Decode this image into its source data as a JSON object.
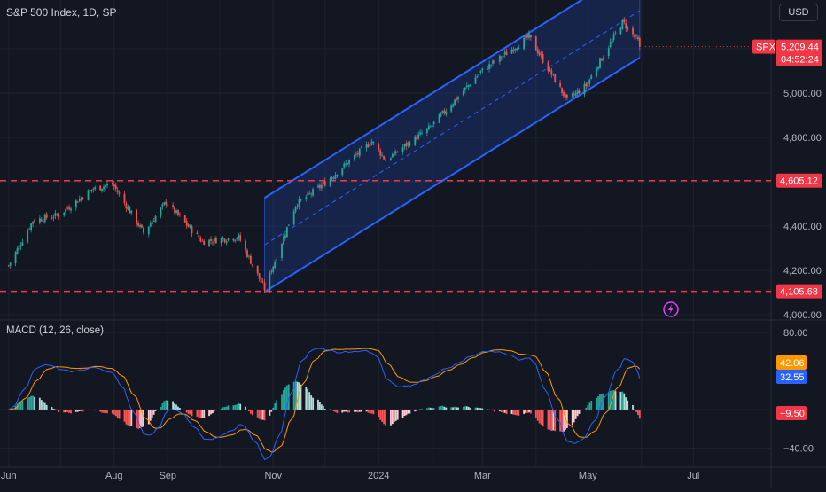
{
  "header": {
    "title": "S&P 500 Index, 1D, SP",
    "currency": "USD",
    "macd_title": "MACD (12, 26, close)"
  },
  "colors": {
    "background": "#131722",
    "up": "#26a69a",
    "down": "#ef5350",
    "channel": "#2962ff",
    "level": "#f23645",
    "macd": "#2962ff",
    "signal": "#ff9800",
    "hist_up_strong": "#26a69a",
    "hist_up_weak": "#b2dfdb",
    "hist_down_strong": "#ff5252",
    "hist_down_weak": "#ffcdd2"
  },
  "chart_data": [
    {
      "type": "candlestick",
      "title": "S&P 500 Index, 1D, SP",
      "x_tick_labels": [
        "Jun",
        "Aug",
        "Sep",
        "Nov",
        "2024",
        "Mar",
        "May",
        "Jul"
      ],
      "y_tick_labels": [
        "5,000.00",
        "4,800.00",
        "4,400.00",
        "4,200.00",
        "4,000.00"
      ],
      "ylim": [
        3980,
        5420
      ],
      "price_anchors": [
        {
          "date": "2023-06-01",
          "close": 4221
        },
        {
          "date": "2023-06-15",
          "close": 4425
        },
        {
          "date": "2023-06-30",
          "close": 4450
        },
        {
          "date": "2023-07-19",
          "close": 4565
        },
        {
          "date": "2023-07-31",
          "close": 4590
        },
        {
          "date": "2023-08-18",
          "close": 4370
        },
        {
          "date": "2023-08-31",
          "close": 4508
        },
        {
          "date": "2023-09-21",
          "close": 4330
        },
        {
          "date": "2023-10-12",
          "close": 4350
        },
        {
          "date": "2023-10-27",
          "close": 4117
        },
        {
          "date": "2023-11-14",
          "close": 4496
        },
        {
          "date": "2023-12-01",
          "close": 4595
        },
        {
          "date": "2023-12-28",
          "close": 4783
        },
        {
          "date": "2024-01-05",
          "close": 4697
        },
        {
          "date": "2024-01-31",
          "close": 4846
        },
        {
          "date": "2024-02-29",
          "close": 5096
        },
        {
          "date": "2024-03-28",
          "close": 5254
        },
        {
          "date": "2024-04-19",
          "close": 4967
        },
        {
          "date": "2024-04-30",
          "close": 5035
        },
        {
          "date": "2024-05-21",
          "close": 5321
        },
        {
          "date": "2024-05-30",
          "close": 5235
        },
        {
          "date": "2024-05-31",
          "close": 5209
        }
      ],
      "regression_channel": {
        "start": "2023-10-27",
        "end": "2024-05-31",
        "lower_start": 4103,
        "lower_end": 5160,
        "mid_start": 4315,
        "mid_end": 5372,
        "upper_start": 4527,
        "upper_end": 5584
      },
      "levels": [
        {
          "value": 4605.12,
          "label": "4,605.12"
        },
        {
          "value": 4105.68,
          "label": "4,105.68"
        }
      ],
      "last_price": {
        "symbol": "SPX",
        "value": 5209.44,
        "label": "5,209.44",
        "countdown": "04:52:24"
      }
    },
    {
      "type": "macd",
      "title": "MACD (12, 26, close)",
      "params": [
        12,
        26,
        "close"
      ],
      "y_tick_labels": [
        "80.00",
        "0.00",
        "−40.00"
      ],
      "ylim": [
        -58,
        92
      ],
      "current": {
        "macd": 32.55,
        "macd_label": "32.55",
        "signal": 42.06,
        "signal_label": "42.06",
        "histogram": -9.5,
        "histogram_label": "−9.50"
      }
    }
  ]
}
